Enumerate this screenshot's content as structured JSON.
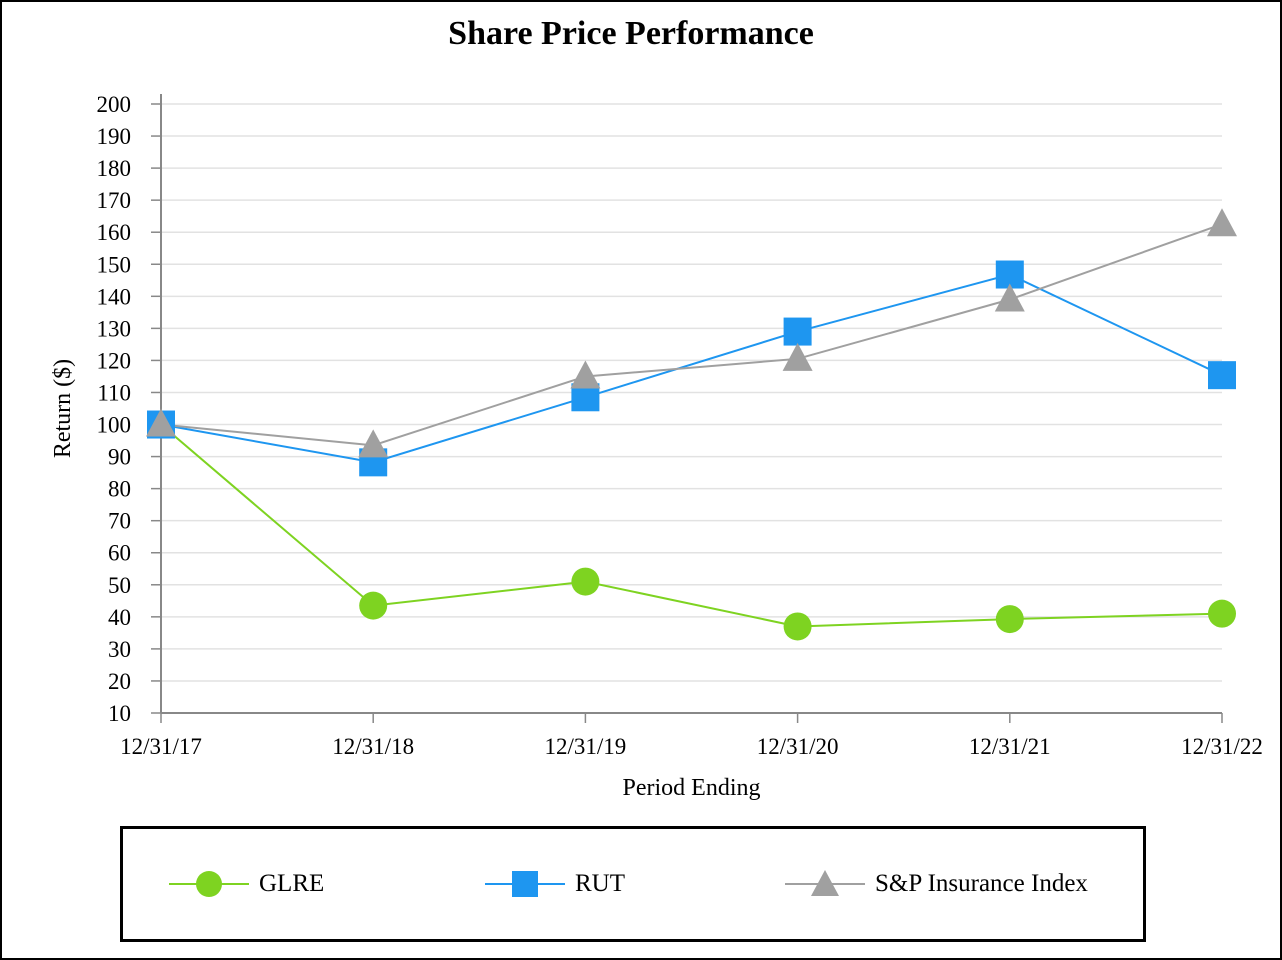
{
  "chart_data": {
    "type": "line",
    "title": "Share Price Performance",
    "xlabel": "Period Ending",
    "ylabel": "Return ($)",
    "categories": [
      "12/31/17",
      "12/31/18",
      "12/31/19",
      "12/31/20",
      "12/31/21",
      "12/31/22"
    ],
    "ylim": [
      10,
      200
    ],
    "yticks": [
      10,
      20,
      30,
      40,
      50,
      60,
      70,
      80,
      90,
      100,
      110,
      120,
      130,
      140,
      150,
      160,
      170,
      180,
      190,
      200
    ],
    "grid": true,
    "legend_position": "bottom",
    "series": [
      {
        "name": "GLRE",
        "values": [
          100,
          43.5,
          51,
          37,
          39.3,
          41
        ],
        "color": "#7ED321",
        "marker": "circle"
      },
      {
        "name": "RUT",
        "values": [
          100,
          88.2,
          108.5,
          129,
          146.8,
          115.4
        ],
        "color": "#1E96F0",
        "marker": "square"
      },
      {
        "name": "S&P Insurance Index",
        "values": [
          100,
          93.5,
          115,
          120.5,
          139,
          162.5
        ],
        "color": "#A0A0A0",
        "marker": "triangle"
      }
    ]
  }
}
